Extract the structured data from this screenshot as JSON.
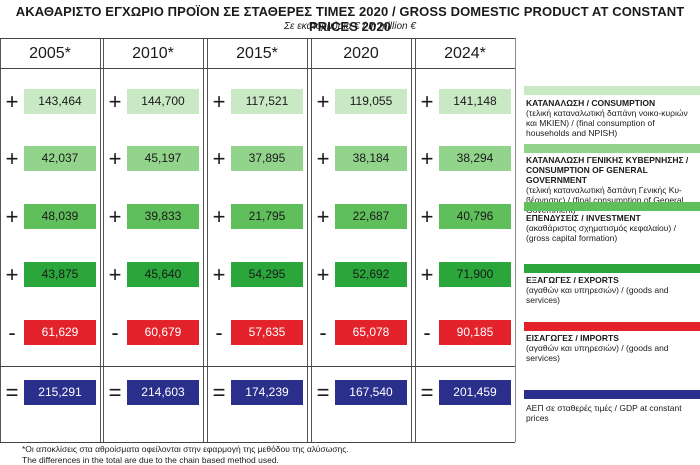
{
  "title": "ΑΚΑΘΑΡΙΣΤΟ ΕΓΧΩΡΙΟ ΠΡΟΪΟΝ ΣΕ ΣΤΑΘΕΡΕΣ ΤΙΜΕΣ 2020 / GROSS DOMESTIC PRODUCT AT CONSTANT PRICES 2020",
  "subtitle": "Σε εκατομμύρια € / In million €",
  "years": [
    "2005*",
    "2010*",
    "2015*",
    "2020",
    "2024*"
  ],
  "rows": [
    {
      "sign": "+",
      "color": "#c9e9c4",
      "text_color": "#1a1a1a",
      "values": [
        "143,464",
        "144,700",
        "117,521",
        "119,055",
        "141,148"
      ],
      "label_title": "ΚΑΤΑΝΑΛΩΣΗ / CONSUMPTION",
      "label_desc": "(τελική καταναλωτική δαπάνη νοικο-κυριών και ΜΚΙΕΝ) / (final consumption of households and NPISH)"
    },
    {
      "sign": "+",
      "color": "#93d48c",
      "text_color": "#1a1a1a",
      "values": [
        "42,037",
        "45,197",
        "37,895",
        "38,184",
        "38,294"
      ],
      "label_title": "ΚΑΤΑΝΑΛΩΣΗ ΓΕΝΙΚΗΣ ΚΥΒΕΡΝΗΣΗΣ / CONSUMPTION OF GENERAL GOVERNMENT",
      "label_desc": "(τελική καταναλωτική δαπάνη Γενικής Κυ-βέρνησης) / (final consumption of General Government)"
    },
    {
      "sign": "+",
      "color": "#5fbf5b",
      "text_color": "#1a1a1a",
      "values": [
        "48,039",
        "39,833",
        "21,795",
        "22,687",
        "40,796"
      ],
      "label_title": "ΕΠΕΝΔΥΣΕΙΣ / INVESTMENT",
      "label_desc": "(ακαθάριστος σχηματισμός κεφαλαίου) / (gross capital formation)"
    },
    {
      "sign": "+",
      "color": "#2aa63a",
      "text_color": "#1a1a1a",
      "values": [
        "43,875",
        "45,640",
        "54,295",
        "52,692",
        "71,900"
      ],
      "label_title": "ΕΞΑΓΩΓΕΣ / EXPORTS",
      "label_desc": "(αγαθών και υπηρεσιών) / (goods and services)"
    },
    {
      "sign": "-",
      "color": "#e3222b",
      "text_color": "#ffffff",
      "values": [
        "61,629",
        "60,679",
        "57,635",
        "65,078",
        "90,185"
      ],
      "label_title": "ΕΙΣΑΓΩΓΕΣ / IMPORTS",
      "label_desc": "(αγαθών και υπηρεσιών) / (goods and services)"
    },
    {
      "sign": "=",
      "color": "#2b2f8c",
      "text_color": "#ffffff",
      "values": [
        "215,291",
        "214,603",
        "174,239",
        "167,540",
        "201,459"
      ],
      "label_title": "",
      "label_desc": "ΑΕΠ σε σταθερές τιμές / GDP at constant prices"
    }
  ],
  "footnote_1": "*Οι αποκλίσεις στα αθροίσματα οφείλονται στην εφαρμογή της μεθόδου της αλύσωσης.",
  "footnote_2": "The differences in the total are due to the chain based method used."
}
